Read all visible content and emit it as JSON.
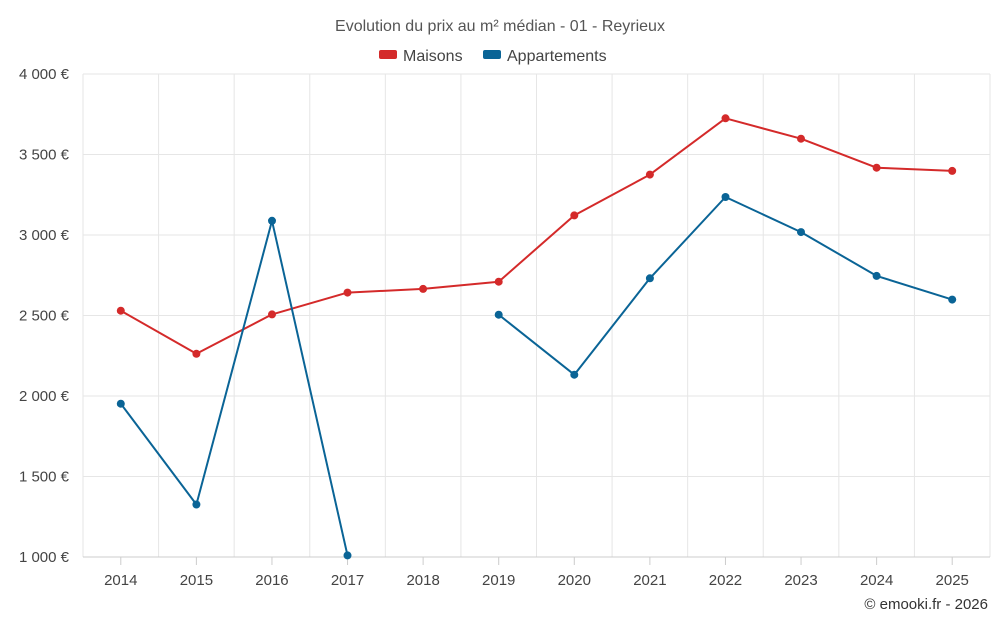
{
  "chart_data": {
    "type": "line",
    "title": "Evolution du prix au m² médian - 01 - Reyrieux",
    "categories": [
      "2014",
      "2015",
      "2016",
      "2017",
      "2018",
      "2019",
      "2020",
      "2021",
      "2022",
      "2023",
      "2024",
      "2025"
    ],
    "series": [
      {
        "name": "Maisons",
        "color": "#d42a2a",
        "values": [
          2530,
          2262,
          2507,
          2642,
          2665,
          2710,
          3122,
          3375,
          3725,
          3598,
          3418,
          3398
        ]
      },
      {
        "name": "Appartements",
        "color": "#0a6496",
        "values": [
          1952,
          1326,
          3088,
          1010,
          null,
          2505,
          2132,
          2731,
          3236,
          3018,
          2746,
          2599
        ]
      }
    ],
    "ylim": [
      1000,
      4000
    ],
    "yticks": [
      1000,
      1500,
      2000,
      2500,
      3000,
      3500,
      4000
    ],
    "ytick_labels": [
      "1 000 €",
      "1 500 €",
      "2 000 €",
      "2 500 €",
      "3 000 €",
      "3 500 €",
      "4 000 €"
    ],
    "xlabel": "",
    "ylabel": "",
    "grid": true,
    "legend_position": "top-center"
  },
  "credit": "© emooki.fr - 2026"
}
